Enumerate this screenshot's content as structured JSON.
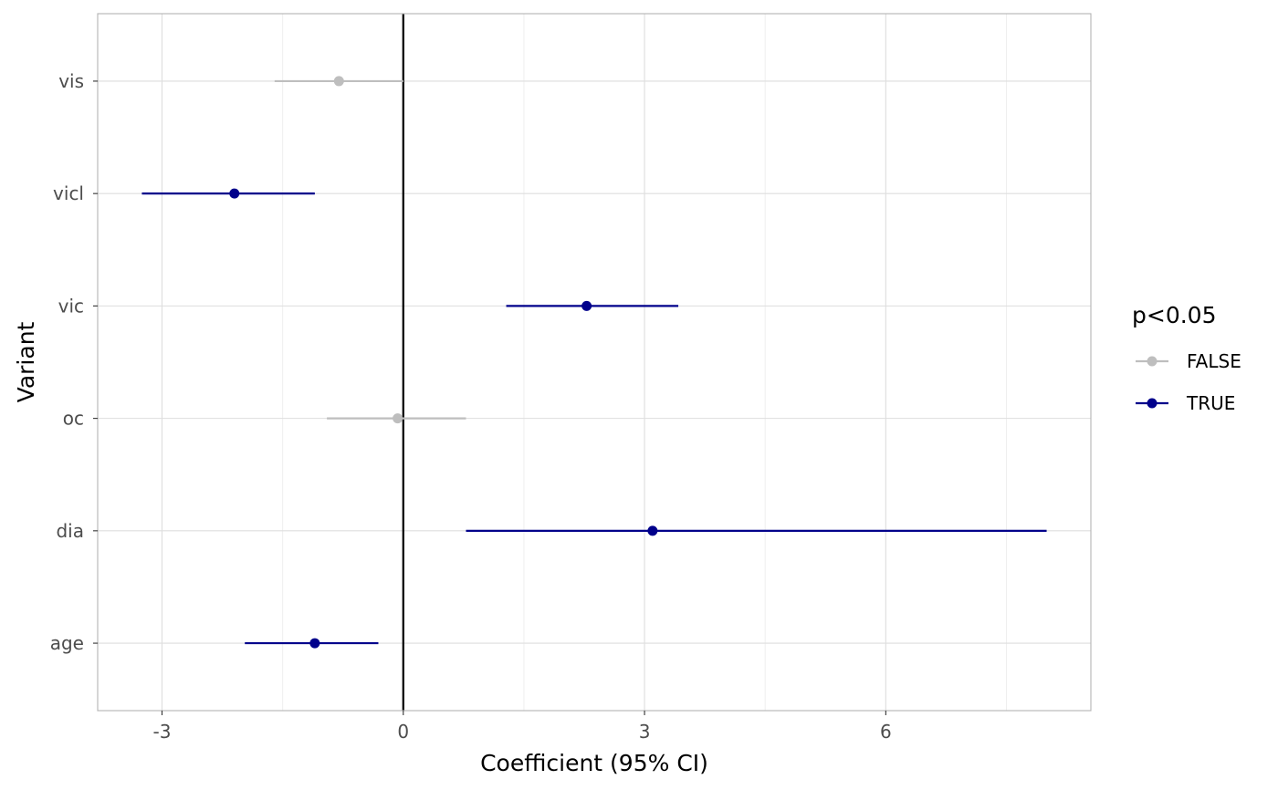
{
  "chart_data": {
    "type": "forest",
    "xlabel": "Coefficient (95% CI)",
    "ylabel": "Variant",
    "xlim": [
      -3.8,
      8.55
    ],
    "x_ticks": [
      -3,
      0,
      3,
      6
    ],
    "x_tick_labels": [
      "-3",
      "0",
      "3",
      "6"
    ],
    "x_minor_ticks": [
      -1.5,
      1.5,
      4.5,
      7.5
    ],
    "reference_line_x": 0,
    "grid": true,
    "categories": [
      "vis",
      "vicl",
      "vic",
      "oc",
      "dia",
      "age"
    ],
    "points": [
      {
        "label": "vis",
        "estimate": -0.8,
        "lower": -1.6,
        "upper": 0.0,
        "significant": "FALSE"
      },
      {
        "label": "vicl",
        "estimate": -2.1,
        "lower": -3.25,
        "upper": -1.1,
        "significant": "TRUE"
      },
      {
        "label": "vic",
        "estimate": 2.28,
        "lower": 1.28,
        "upper": 3.42,
        "significant": "TRUE"
      },
      {
        "label": "oc",
        "estimate": -0.07,
        "lower": -0.95,
        "upper": 0.78,
        "significant": "FALSE"
      },
      {
        "label": "dia",
        "estimate": 3.1,
        "lower": 0.78,
        "upper": 8.0,
        "significant": "TRUE"
      },
      {
        "label": "age",
        "estimate": -1.1,
        "lower": -1.97,
        "upper": -0.31,
        "significant": "TRUE"
      }
    ],
    "legend": {
      "title": "p<0.05",
      "position": "right",
      "entries": [
        {
          "key": "FALSE",
          "label": "FALSE",
          "color": "#bebebe"
        },
        {
          "key": "TRUE",
          "label": "TRUE",
          "color": "#00008b"
        }
      ]
    },
    "colors": {
      "panel_border": "#b3b3b3",
      "grid_major": "#dedede",
      "grid_minor": "#efefef",
      "reference_line": "#000000"
    }
  }
}
